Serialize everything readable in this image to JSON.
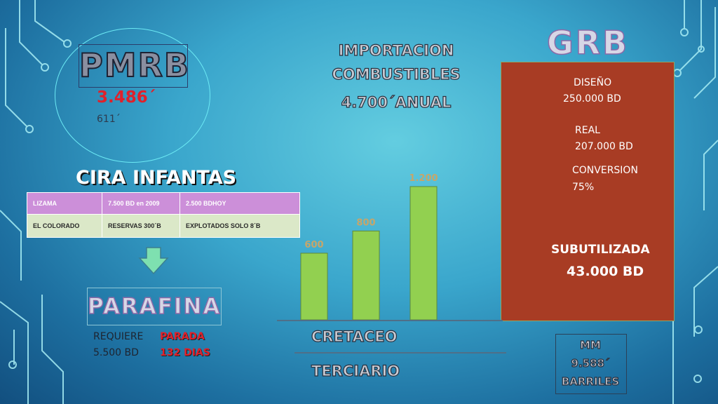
{
  "pmrb": {
    "title": "PMRB",
    "value1": "3.486´",
    "value2": "611´"
  },
  "importacion": {
    "line1": "IMPORTACION",
    "line2": "COMBUSTIBLES",
    "line3": "4.700´ANUAL"
  },
  "grb": {
    "title": "GRB",
    "diseno_label": "DISEÑO",
    "diseno_value": "250.000 BD",
    "real_label": "REAL",
    "real_value": "207.000 BD",
    "conversion_label": "CONVERSION",
    "conversion_value": "75%",
    "sub_label": "SUBUTILIZADA",
    "sub_value": "43.000 BD",
    "box_color": "#a83c24"
  },
  "cira": {
    "title": "CIRA INFANTAS",
    "table": [
      [
        "LIZAMA",
        "7.500 BD en 2009",
        "2.500 BDHOY"
      ],
      [
        "EL COLORADO",
        "RESERVAS 300´B",
        "EXPLOTADOS SOLO 8´B"
      ]
    ]
  },
  "parafina": {
    "title": "PARAFINA",
    "requiere": "REQUIERE",
    "requiere_value": "5.500 BD",
    "parada": "PARADA",
    "dias": "132 DIAS"
  },
  "mm": {
    "line1": "MM",
    "line2": "9.588´",
    "line3": "BARRILES"
  },
  "layers": {
    "cretaceo": "CRETACEO",
    "terciario": "TERCIARIO"
  },
  "colors": {
    "bar": "#92d050",
    "red_text": "#e0202a",
    "arrow": "#7ee0b0"
  },
  "chart_data": {
    "type": "bar",
    "categories": [
      "",
      "",
      ""
    ],
    "values": [
      600,
      800,
      1200
    ],
    "labels": [
      "600",
      "800",
      "1.200"
    ],
    "title": "",
    "xlabel": "",
    "ylabel": ""
  }
}
